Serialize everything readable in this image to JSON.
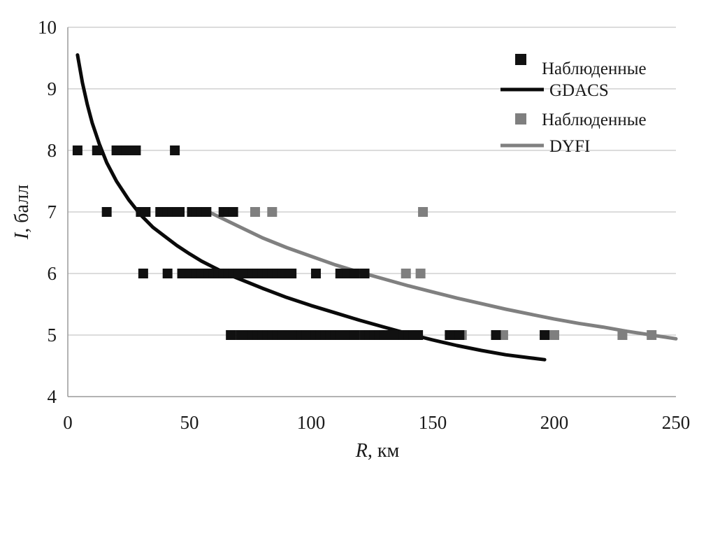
{
  "chart_data": {
    "type": "scatter",
    "xlabel": {
      "var": "R",
      "unit": ", км"
    },
    "ylabel": {
      "var": "I",
      "unit": ", балл"
    },
    "xlim": [
      0,
      250
    ],
    "ylim": [
      4,
      10
    ],
    "xticks": [
      0,
      50,
      100,
      150,
      200,
      250
    ],
    "yticks": [
      4,
      5,
      6,
      7,
      8,
      9,
      10
    ],
    "grid": "horizontal",
    "legend_position": "top-right",
    "series": [
      {
        "name": "Наблюденные",
        "kind": "points",
        "color": "#111111",
        "points": [
          [
            4,
            8
          ],
          [
            12,
            8
          ],
          [
            20,
            8
          ],
          [
            22,
            8
          ],
          [
            24,
            8
          ],
          [
            28,
            8
          ],
          [
            44,
            8
          ],
          [
            16,
            7
          ],
          [
            30,
            7
          ],
          [
            32,
            7
          ],
          [
            38,
            7
          ],
          [
            41,
            7
          ],
          [
            43,
            7
          ],
          [
            45,
            7
          ],
          [
            46,
            7
          ],
          [
            51,
            7
          ],
          [
            53,
            7
          ],
          [
            55,
            7
          ],
          [
            57,
            7
          ],
          [
            64,
            7
          ],
          [
            66,
            7
          ],
          [
            68,
            7
          ],
          [
            31,
            6
          ],
          [
            41,
            6
          ],
          [
            47,
            6
          ],
          [
            50,
            6
          ],
          [
            53,
            6
          ],
          [
            55,
            6
          ],
          [
            58,
            6
          ],
          [
            60,
            6
          ],
          [
            62,
            6
          ],
          [
            64,
            6
          ],
          [
            66,
            6
          ],
          [
            68,
            6
          ],
          [
            70,
            6
          ],
          [
            72,
            6
          ],
          [
            74,
            6
          ],
          [
            76,
            6
          ],
          [
            78,
            6
          ],
          [
            80,
            6
          ],
          [
            82,
            6
          ],
          [
            84,
            6
          ],
          [
            86,
            6
          ],
          [
            88,
            6
          ],
          [
            90,
            6
          ],
          [
            92,
            6
          ],
          [
            102,
            6
          ],
          [
            112,
            6
          ],
          [
            115,
            6
          ],
          [
            118,
            6
          ],
          [
            122,
            6
          ],
          [
            67,
            5
          ],
          [
            71,
            5
          ],
          [
            74,
            5
          ],
          [
            76,
            5
          ],
          [
            78,
            5
          ],
          [
            80,
            5
          ],
          [
            82,
            5
          ],
          [
            84,
            5
          ],
          [
            86,
            5
          ],
          [
            88,
            5
          ],
          [
            90,
            5
          ],
          [
            92,
            5
          ],
          [
            94,
            5
          ],
          [
            96,
            5
          ],
          [
            98,
            5
          ],
          [
            100,
            5
          ],
          [
            102,
            5
          ],
          [
            104,
            5
          ],
          [
            106,
            5
          ],
          [
            108,
            5
          ],
          [
            110,
            5
          ],
          [
            112,
            5
          ],
          [
            114,
            5
          ],
          [
            116,
            5
          ],
          [
            118,
            5
          ],
          [
            122,
            5
          ],
          [
            124,
            5
          ],
          [
            126,
            5
          ],
          [
            128,
            5
          ],
          [
            130,
            5
          ],
          [
            132,
            5
          ],
          [
            134,
            5
          ],
          [
            136,
            5
          ],
          [
            138,
            5
          ],
          [
            140,
            5
          ],
          [
            142,
            5
          ],
          [
            144,
            5
          ],
          [
            157,
            5
          ],
          [
            159,
            5
          ],
          [
            161,
            5
          ],
          [
            176,
            5
          ],
          [
            196,
            5
          ]
        ]
      },
      {
        "name": "GDACS",
        "kind": "line",
        "color": "#0a0a0a",
        "points": [
          [
            4,
            9.55
          ],
          [
            6,
            9.1
          ],
          [
            8,
            8.75
          ],
          [
            10,
            8.45
          ],
          [
            13,
            8.1
          ],
          [
            16,
            7.8
          ],
          [
            20,
            7.5
          ],
          [
            25,
            7.2
          ],
          [
            30,
            6.95
          ],
          [
            35,
            6.75
          ],
          [
            40,
            6.6
          ],
          [
            45,
            6.45
          ],
          [
            50,
            6.32
          ],
          [
            55,
            6.2
          ],
          [
            60,
            6.1
          ],
          [
            65,
            6.0
          ],
          [
            70,
            5.92
          ],
          [
            80,
            5.76
          ],
          [
            90,
            5.61
          ],
          [
            100,
            5.48
          ],
          [
            110,
            5.36
          ],
          [
            120,
            5.24
          ],
          [
            130,
            5.13
          ],
          [
            140,
            5.02
          ],
          [
            150,
            4.92
          ],
          [
            160,
            4.83
          ],
          [
            170,
            4.75
          ],
          [
            180,
            4.68
          ],
          [
            190,
            4.63
          ],
          [
            196,
            4.6
          ]
        ]
      },
      {
        "name": "Наблюденные",
        "kind": "points",
        "color": "#7f7f7f",
        "points": [
          [
            77,
            7
          ],
          [
            84,
            7
          ],
          [
            146,
            7
          ],
          [
            139,
            6
          ],
          [
            145,
            6
          ],
          [
            162,
            5
          ],
          [
            179,
            5
          ],
          [
            200,
            5
          ],
          [
            228,
            5
          ],
          [
            240,
            5
          ]
        ]
      },
      {
        "name": "DYFI",
        "kind": "line",
        "color": "#808080",
        "points": [
          [
            58,
            7.0
          ],
          [
            70,
            6.77
          ],
          [
            80,
            6.58
          ],
          [
            90,
            6.42
          ],
          [
            100,
            6.28
          ],
          [
            110,
            6.14
          ],
          [
            120,
            6.02
          ],
          [
            130,
            5.91
          ],
          [
            140,
            5.8
          ],
          [
            150,
            5.7
          ],
          [
            160,
            5.6
          ],
          [
            170,
            5.51
          ],
          [
            180,
            5.42
          ],
          [
            190,
            5.34
          ],
          [
            200,
            5.26
          ],
          [
            210,
            5.19
          ],
          [
            220,
            5.13
          ],
          [
            230,
            5.06
          ],
          [
            240,
            5.0
          ],
          [
            250,
            4.94
          ]
        ]
      }
    ]
  }
}
